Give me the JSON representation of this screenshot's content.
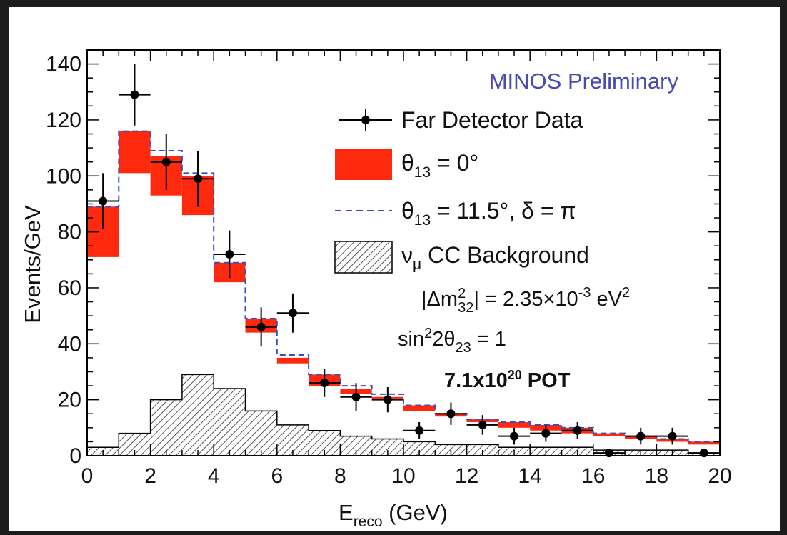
{
  "colors": {
    "nominal": "#ff2a0e",
    "alt": "#3c4dbb",
    "data": "#000000",
    "bg_hatch": "#555555",
    "prelim": "#4a4ab0"
  },
  "chart_data": {
    "type": "histogram",
    "title": "MINOS Preliminary",
    "xlabel_main": "E",
    "xlabel_sub": "reco",
    "xlabel_unit": " (GeV)",
    "ylabel": "Events/GeV",
    "xlim": [
      0,
      20
    ],
    "ylim": [
      0,
      145
    ],
    "x_ticks": [
      0,
      2,
      4,
      6,
      8,
      10,
      12,
      14,
      16,
      18,
      20
    ],
    "y_ticks": [
      0,
      20,
      40,
      60,
      80,
      100,
      120,
      140
    ],
    "bin_edges": [
      0,
      1,
      2,
      3,
      4,
      5,
      6,
      7,
      8,
      9,
      10,
      11,
      12,
      13,
      14,
      15,
      16,
      17,
      18,
      19,
      20
    ],
    "series": [
      {
        "name": "Far Detector Data",
        "kind": "points",
        "values": [
          91,
          129,
          105,
          99,
          72,
          46,
          51,
          26,
          21,
          20,
          9,
          15,
          11,
          7,
          8,
          9,
          1,
          7,
          7,
          1
        ],
        "errors": [
          10,
          11,
          10,
          10,
          8.5,
          7,
          7,
          5,
          5,
          4.5,
          3,
          4,
          3.5,
          3,
          3,
          3,
          1,
          3,
          3,
          1
        ]
      },
      {
        "name": "θ13 = 0°",
        "kind": "band",
        "low": [
          71,
          101,
          93,
          86,
          62,
          44,
          33,
          25,
          22,
          20,
          16,
          14,
          12,
          10,
          9,
          8,
          7,
          6,
          5,
          4
        ],
        "high": [
          89,
          116,
          107,
          100,
          69,
          49,
          35,
          29,
          24,
          21,
          18,
          15,
          13,
          12,
          11,
          10,
          8,
          7,
          6,
          5
        ]
      },
      {
        "name": "θ13 = 11.5°, δ = π",
        "kind": "dashed-step",
        "values": [
          89,
          116,
          109,
          101,
          69,
          49,
          36,
          29,
          25,
          22,
          18,
          15,
          13,
          12,
          11,
          10,
          8,
          7,
          6,
          5
        ]
      },
      {
        "name": "νμ CC Background",
        "kind": "hatched-step",
        "values": [
          3,
          8,
          20,
          29,
          24,
          16,
          11,
          9,
          7,
          6,
          5,
          4,
          4,
          3,
          3,
          3,
          2,
          2,
          2,
          1
        ]
      }
    ],
    "legend": [
      {
        "key": "data",
        "label": "Far Detector Data"
      },
      {
        "key": "nominal",
        "label_main": "θ",
        "label_sub": "13",
        "label_rest": " = 0°"
      },
      {
        "key": "alt",
        "label_main": "θ",
        "label_sub": "13",
        "label_rest": " = 11.5°,  δ = π"
      },
      {
        "key": "bg",
        "label_main": "ν",
        "label_sub": "μ",
        "label_rest": " CC Background"
      }
    ],
    "legend_position": "top-right",
    "annotations": {
      "dm2_a": "|Δm",
      "dm2_sup": "2",
      "dm2_sub": "32",
      "dm2_b": "| = 2.35×10",
      "dm2_exp": "-3",
      "dm2_c": " eV",
      "dm2_sup2": "2",
      "sin_a": "sin",
      "sin_sup": "2",
      "sin_b": "2θ",
      "sin_sub": "23",
      "sin_c": " = 1",
      "pot_a": "7.1x10",
      "pot_sup": "20",
      "pot_b": " POT"
    }
  }
}
